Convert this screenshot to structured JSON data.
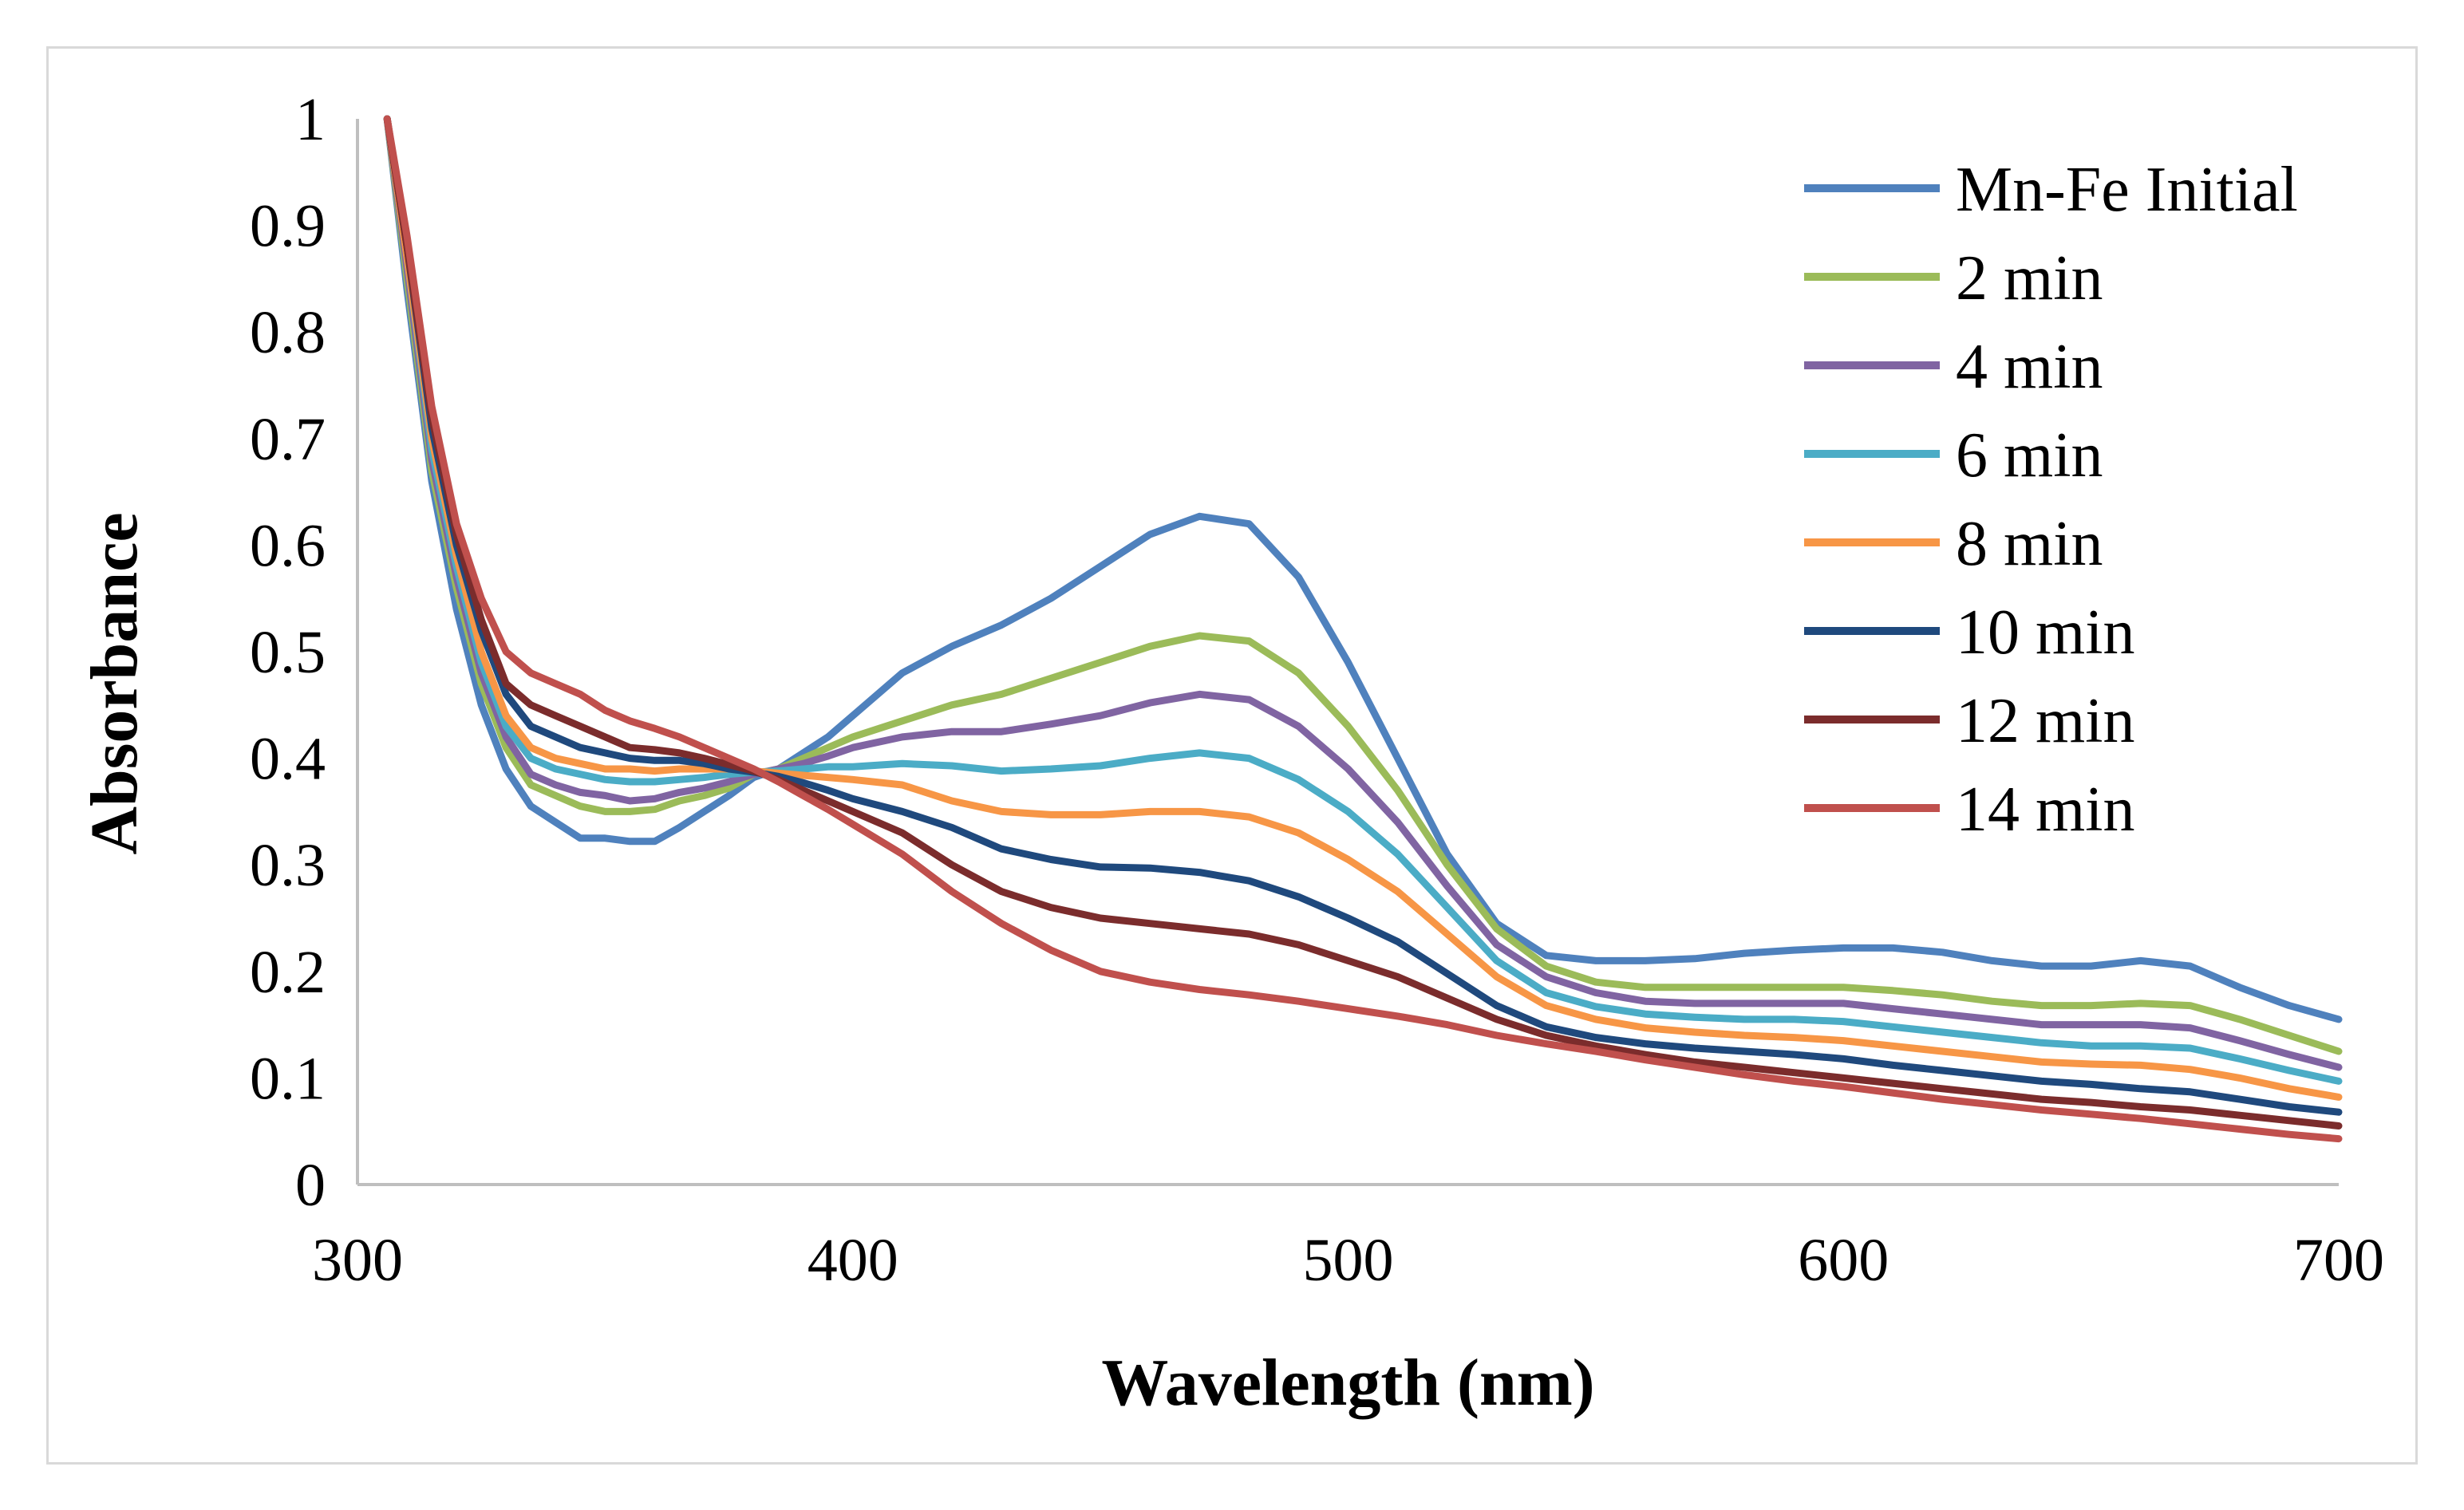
{
  "chart_data": {
    "type": "line",
    "title": "",
    "xlabel": "Wavelength (nm)",
    "ylabel": "Absorbance",
    "xlim": [
      300,
      700
    ],
    "ylim": [
      0,
      1
    ],
    "xticks": [
      "300",
      "400",
      "500",
      "600",
      "700"
    ],
    "yticks": [
      "0",
      "0.1",
      "0.2",
      "0.3",
      "0.4",
      "0.5",
      "0.6",
      "0.7",
      "0.8",
      "0.9",
      "1"
    ],
    "grid": false,
    "legend_position": "top-right",
    "x": [
      306,
      310,
      315,
      320,
      325,
      330,
      335,
      340,
      345,
      350,
      355,
      360,
      365,
      370,
      375,
      380,
      385,
      390,
      395,
      400,
      410,
      420,
      430,
      440,
      450,
      460,
      470,
      480,
      490,
      500,
      510,
      520,
      530,
      540,
      550,
      560,
      570,
      580,
      590,
      600,
      610,
      620,
      630,
      640,
      650,
      660,
      670,
      680,
      690,
      700
    ],
    "series": [
      {
        "name": "Mn-Fe Initial",
        "color": "#4f81bd",
        "values": [
          1.0,
          0.84,
          0.66,
          0.54,
          0.45,
          0.39,
          0.355,
          0.34,
          0.325,
          0.325,
          0.322,
          0.322,
          0.335,
          0.35,
          0.365,
          0.382,
          0.39,
          0.405,
          0.42,
          0.44,
          0.48,
          0.505,
          0.525,
          0.55,
          0.58,
          0.61,
          0.627,
          0.62,
          0.57,
          0.49,
          0.4,
          0.31,
          0.245,
          0.215,
          0.21,
          0.21,
          0.212,
          0.217,
          0.22,
          0.222,
          0.222,
          0.218,
          0.21,
          0.205,
          0.205,
          0.21,
          0.205,
          0.185,
          0.168,
          0.155
        ]
      },
      {
        "name": "2 min",
        "color": "#9bbb59",
        "values": [
          1.0,
          0.85,
          0.67,
          0.56,
          0.47,
          0.41,
          0.375,
          0.365,
          0.355,
          0.35,
          0.35,
          0.352,
          0.36,
          0.365,
          0.372,
          0.385,
          0.39,
          0.4,
          0.41,
          0.42,
          0.435,
          0.45,
          0.46,
          0.475,
          0.49,
          0.505,
          0.515,
          0.51,
          0.48,
          0.43,
          0.37,
          0.3,
          0.24,
          0.205,
          0.19,
          0.185,
          0.185,
          0.185,
          0.185,
          0.185,
          0.182,
          0.178,
          0.172,
          0.168,
          0.168,
          0.17,
          0.168,
          0.155,
          0.14,
          0.125
        ]
      },
      {
        "name": "4 min",
        "color": "#8064a2",
        "values": [
          1.0,
          0.86,
          0.68,
          0.57,
          0.48,
          0.42,
          0.385,
          0.375,
          0.368,
          0.365,
          0.36,
          0.362,
          0.368,
          0.372,
          0.378,
          0.385,
          0.39,
          0.395,
          0.402,
          0.41,
          0.42,
          0.425,
          0.425,
          0.432,
          0.44,
          0.452,
          0.46,
          0.455,
          0.43,
          0.39,
          0.34,
          0.28,
          0.225,
          0.195,
          0.18,
          0.172,
          0.17,
          0.17,
          0.17,
          0.17,
          0.165,
          0.16,
          0.155,
          0.15,
          0.15,
          0.15,
          0.147,
          0.135,
          0.122,
          0.11
        ]
      },
      {
        "name": "6 min",
        "color": "#4bacc6",
        "values": [
          1.0,
          0.87,
          0.69,
          0.58,
          0.49,
          0.43,
          0.4,
          0.39,
          0.385,
          0.38,
          0.378,
          0.378,
          0.38,
          0.382,
          0.385,
          0.387,
          0.388,
          0.39,
          0.392,
          0.392,
          0.395,
          0.393,
          0.388,
          0.39,
          0.393,
          0.4,
          0.405,
          0.4,
          0.38,
          0.35,
          0.31,
          0.26,
          0.21,
          0.18,
          0.167,
          0.16,
          0.157,
          0.155,
          0.155,
          0.153,
          0.148,
          0.143,
          0.138,
          0.133,
          0.13,
          0.13,
          0.128,
          0.118,
          0.107,
          0.097
        ]
      },
      {
        "name": "8 min",
        "color": "#f79646",
        "values": [
          1.0,
          0.87,
          0.7,
          0.59,
          0.5,
          0.44,
          0.41,
          0.4,
          0.395,
          0.39,
          0.39,
          0.388,
          0.39,
          0.39,
          0.39,
          0.388,
          0.386,
          0.384,
          0.382,
          0.38,
          0.375,
          0.36,
          0.35,
          0.347,
          0.347,
          0.35,
          0.35,
          0.345,
          0.33,
          0.305,
          0.275,
          0.235,
          0.195,
          0.168,
          0.155,
          0.147,
          0.143,
          0.14,
          0.138,
          0.135,
          0.13,
          0.125,
          0.12,
          0.115,
          0.113,
          0.112,
          0.108,
          0.1,
          0.09,
          0.082
        ]
      },
      {
        "name": "10 min",
        "color": "#1f497d",
        "values": [
          1.0,
          0.88,
          0.71,
          0.6,
          0.52,
          0.46,
          0.43,
          0.42,
          0.41,
          0.405,
          0.4,
          0.398,
          0.398,
          0.395,
          0.39,
          0.387,
          0.383,
          0.377,
          0.37,
          0.362,
          0.35,
          0.335,
          0.315,
          0.305,
          0.298,
          0.297,
          0.293,
          0.285,
          0.27,
          0.25,
          0.228,
          0.198,
          0.168,
          0.148,
          0.138,
          0.132,
          0.128,
          0.125,
          0.122,
          0.118,
          0.112,
          0.107,
          0.102,
          0.097,
          0.094,
          0.09,
          0.087,
          0.08,
          0.073,
          0.068
        ]
      },
      {
        "name": "12 min",
        "color": "#7b2c2c",
        "values": [
          1.0,
          0.88,
          0.72,
          0.61,
          0.53,
          0.47,
          0.45,
          0.44,
          0.43,
          0.42,
          0.41,
          0.408,
          0.405,
          0.4,
          0.394,
          0.388,
          0.38,
          0.37,
          0.36,
          0.35,
          0.33,
          0.3,
          0.275,
          0.26,
          0.25,
          0.245,
          0.24,
          0.235,
          0.225,
          0.21,
          0.195,
          0.175,
          0.155,
          0.14,
          0.13,
          0.122,
          0.115,
          0.11,
          0.105,
          0.1,
          0.095,
          0.09,
          0.085,
          0.08,
          0.077,
          0.073,
          0.07,
          0.065,
          0.06,
          0.055
        ]
      },
      {
        "name": "14 min",
        "color": "#c0504d",
        "values": [
          1.0,
          0.89,
          0.73,
          0.62,
          0.55,
          0.5,
          0.48,
          0.47,
          0.46,
          0.445,
          0.435,
          0.428,
          0.42,
          0.41,
          0.4,
          0.39,
          0.378,
          0.365,
          0.352,
          0.338,
          0.31,
          0.275,
          0.245,
          0.22,
          0.2,
          0.19,
          0.183,
          0.178,
          0.172,
          0.165,
          0.158,
          0.15,
          0.14,
          0.132,
          0.125,
          0.117,
          0.11,
          0.103,
          0.097,
          0.092,
          0.086,
          0.08,
          0.075,
          0.07,
          0.066,
          0.062,
          0.057,
          0.052,
          0.047,
          0.043
        ]
      }
    ]
  }
}
